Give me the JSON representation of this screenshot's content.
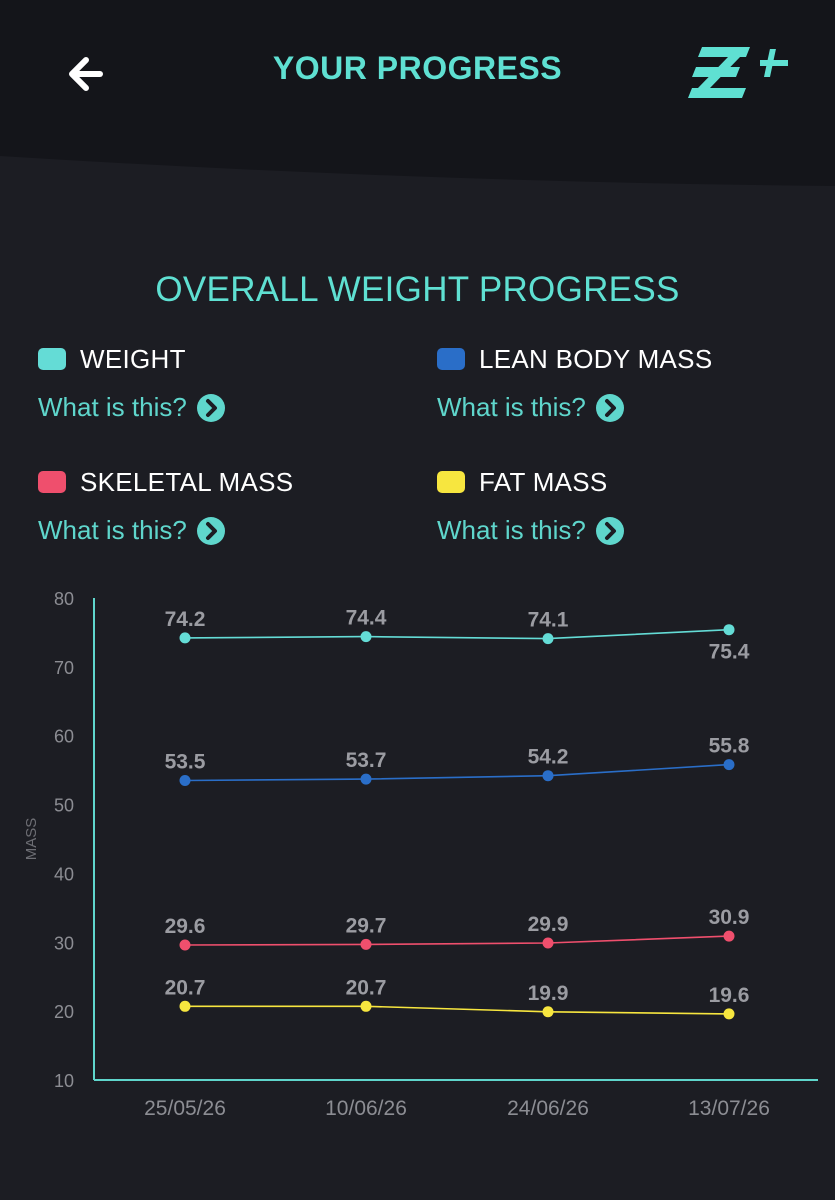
{
  "header": {
    "title": "YOUR PROGRESS",
    "back_icon": "arrow-left-icon",
    "logo_icon": "brand-logo-icon"
  },
  "section": {
    "title": "OVERALL WEIGHT PROGRESS"
  },
  "legend": [
    {
      "label": "WEIGHT",
      "color": "#64dcd6",
      "link": "What is this?"
    },
    {
      "label": "LEAN BODY MASS",
      "color": "#2a6ec8",
      "link": "What is this?"
    },
    {
      "label": "SKELETAL MASS",
      "color": "#ef4f6d",
      "link": "What is this?"
    },
    {
      "label": "FAT MASS",
      "color": "#f7e63f",
      "link": "What is this?"
    }
  ],
  "chart_data": {
    "type": "line",
    "categories": [
      "25/05/26",
      "10/06/26",
      "24/06/26",
      "13/07/26"
    ],
    "ylabel": "MASS",
    "ylim": [
      10,
      80
    ],
    "yticks": [
      10,
      20,
      30,
      40,
      50,
      60,
      70,
      80
    ],
    "grid": false,
    "legend_position": "top",
    "series": [
      {
        "name": "WEIGHT",
        "color": "#64dcd6",
        "values": [
          74.2,
          74.4,
          74.1,
          75.4
        ]
      },
      {
        "name": "LEAN BODY MASS",
        "color": "#2a6ec8",
        "values": [
          53.5,
          53.7,
          54.2,
          55.8
        ]
      },
      {
        "name": "SKELETAL MASS",
        "color": "#ef4f6d",
        "values": [
          29.6,
          29.7,
          29.9,
          30.9
        ]
      },
      {
        "name": "FAT MASS",
        "color": "#f7e63f",
        "values": [
          20.7,
          20.7,
          19.9,
          19.6
        ]
      }
    ]
  }
}
